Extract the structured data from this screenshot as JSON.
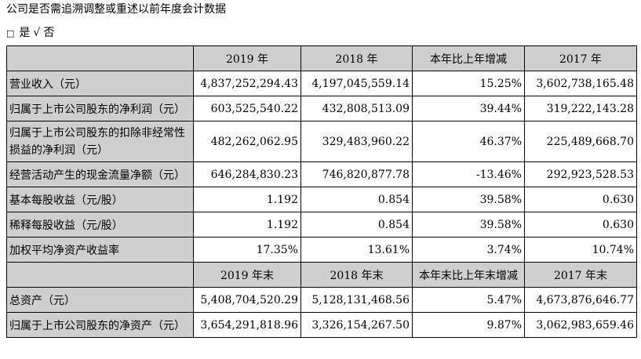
{
  "heading": "公司是否需追溯调整或重述以前年度会计数据",
  "choice": {
    "box1": "□",
    "yes": "是",
    "check": "√",
    "no": "否"
  },
  "header1": [
    "",
    "2019 年",
    "2018 年",
    "本年比上年增减",
    "2017 年"
  ],
  "rows1": [
    {
      "label": "营业收入（元）",
      "values": [
        "4,837,252,294.43",
        "4,197,045,559.14",
        "15.25%",
        "3,602,738,165.48"
      ]
    },
    {
      "label": "归属于上市公司股东的净利润（元）",
      "values": [
        "603,525,540.22",
        "432,808,513.09",
        "39.44%",
        "319,222,143.28"
      ]
    },
    {
      "label": "归属于上市公司股东的扣除非经常性损益的净利润（元）",
      "values": [
        "482,262,062.95",
        "329,483,960.22",
        "46.37%",
        "225,489,668.70"
      ]
    },
    {
      "label": "经营活动产生的现金流量净额（元）",
      "values": [
        "646,284,830.23",
        "746,820,877.78",
        "-13.46%",
        "292,923,528.53"
      ]
    },
    {
      "label": "基本每股收益（元/股）",
      "values": [
        "1.192",
        "0.854",
        "39.58%",
        "0.630"
      ]
    },
    {
      "label": "稀释每股收益（元/股）",
      "values": [
        "1.192",
        "0.854",
        "39.58%",
        "0.630"
      ]
    },
    {
      "label": "加权平均净资产收益率",
      "values": [
        "17.35%",
        "13.61%",
        "3.74%",
        "10.74%"
      ]
    }
  ],
  "header2": [
    "",
    "2019 年末",
    "2018 年末",
    "本年末比上年末增减",
    "2017 年末"
  ],
  "rows2": [
    {
      "label": "总资产（元）",
      "values": [
        "5,408,704,520.29",
        "5,128,131,468.56",
        "5.47%",
        "4,673,876,646.77"
      ]
    },
    {
      "label": "归属于上市公司股东的净资产（元）",
      "values": [
        "3,654,291,818.96",
        "3,326,154,267.50",
        "9.87%",
        "3,062,983,659.46"
      ]
    }
  ]
}
